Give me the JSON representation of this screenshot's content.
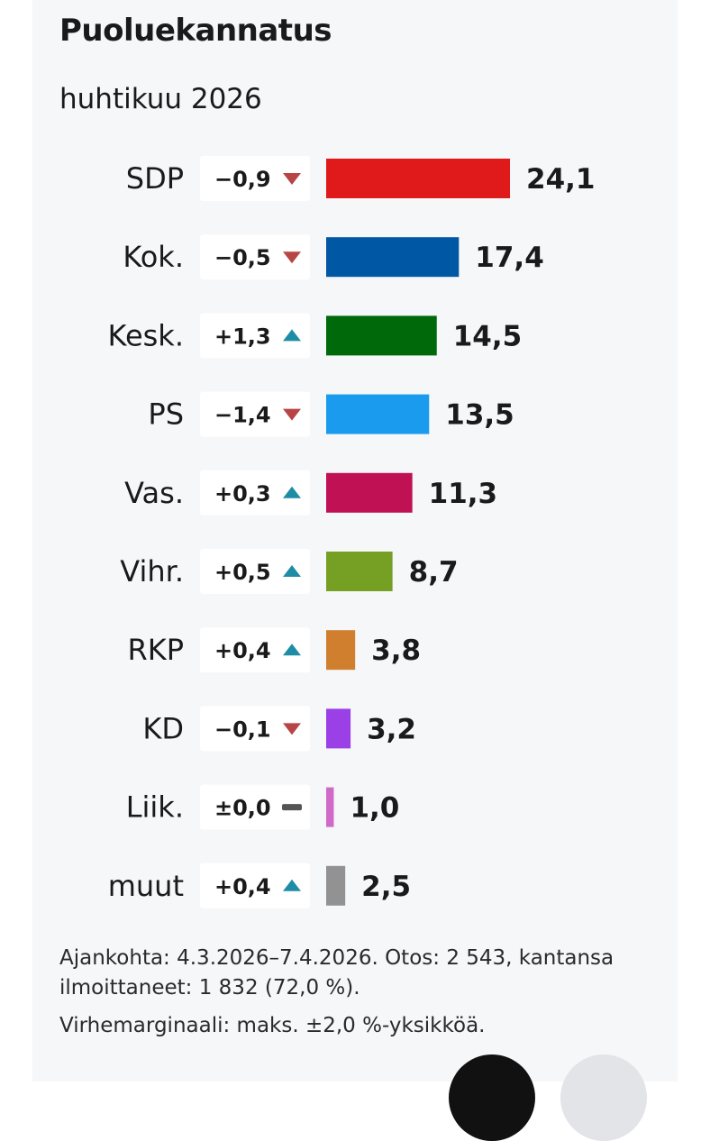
{
  "header": {
    "title": "Puoluekannatus",
    "subtitle": "huhtikuu 2026"
  },
  "chart_data": {
    "type": "bar",
    "orientation": "horizontal",
    "title": "Puoluekannatus",
    "subtitle": "huhtikuu 2026",
    "categories": [
      "SDP",
      "Kok.",
      "Kesk.",
      "PS",
      "Vas.",
      "Vihr.",
      "RKP",
      "KD",
      "Liik.",
      "muut"
    ],
    "values": [
      24.1,
      17.4,
      14.5,
      13.5,
      11.3,
      8.7,
      3.8,
      3.2,
      1.0,
      2.5
    ],
    "value_labels": [
      "24,1",
      "17,4",
      "14,5",
      "13,5",
      "11,3",
      "8,7",
      "3,8",
      "3,2",
      "1,0",
      "2,5"
    ],
    "changes": [
      -0.9,
      -0.5,
      1.3,
      -1.4,
      0.3,
      0.5,
      0.4,
      -0.1,
      0.0,
      0.4
    ],
    "change_labels": [
      "−0,9",
      "−0,5",
      "+1,3",
      "−1,4",
      "+0,3",
      "+0,5",
      "+0,4",
      "−0,1",
      "±0,0",
      "+0,4"
    ],
    "change_directions": [
      "down",
      "down",
      "up",
      "down",
      "up",
      "up",
      "up",
      "down",
      "flat",
      "up"
    ],
    "colors": [
      "#e0191b",
      "#0057a4",
      "#006a0a",
      "#1a9bee",
      "#bf1154",
      "#76a024",
      "#d07f2e",
      "#9b40e6",
      "#d069c8",
      "#929292"
    ],
    "indicator_colors": {
      "up": "#1f8ca6",
      "down": "#b84545",
      "flat": "#555555"
    },
    "xlim": [
      0,
      24.1
    ],
    "grid": false,
    "legend": "none"
  },
  "footnotes": {
    "line1": "Ajankohta: 4.3.2026–7.4.2026. Otos: 2 543, kantansa ilmoittaneet: 1 832 (72,0 %).",
    "line2": "Virhemarginaali: maks. ±2,0 %-yksikköä."
  }
}
